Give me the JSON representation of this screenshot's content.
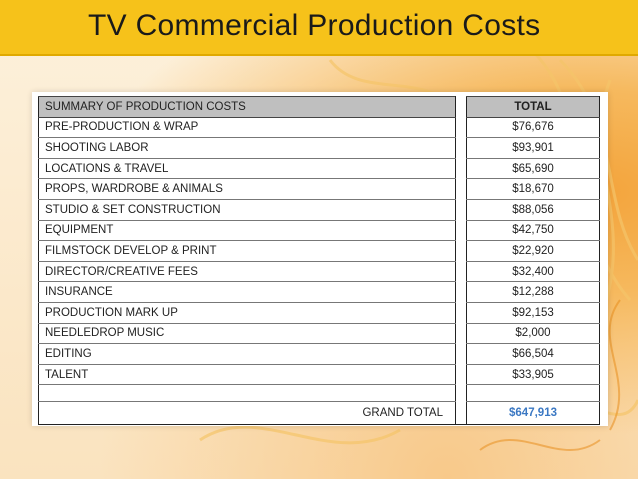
{
  "title": "TV Commercial Production Costs",
  "table": {
    "header_label": "SUMMARY OF  PRODUCTION COSTS",
    "header_total": "TOTAL",
    "rows": [
      {
        "label": "PRE-PRODUCTION & WRAP",
        "value": "$76,676"
      },
      {
        "label": "SHOOTING LABOR",
        "value": "$93,901"
      },
      {
        "label": "LOCATIONS & TRAVEL",
        "value": "$65,690"
      },
      {
        "label": "PROPS, WARDROBE & ANIMALS",
        "value": "$18,670"
      },
      {
        "label": "STUDIO & SET CONSTRUCTION",
        "value": "$88,056"
      },
      {
        "label": "EQUIPMENT",
        "value": "$42,750"
      },
      {
        "label": "FILMSTOCK DEVELOP & PRINT",
        "value": "$22,920"
      },
      {
        "label": "DIRECTOR/CREATIVE FEES",
        "value": "$32,400"
      },
      {
        "label": "INSURANCE",
        "value": "$12,288"
      },
      {
        "label": "PRODUCTION MARK UP",
        "value": "$92,153"
      },
      {
        "label": "NEEDLEDROP MUSIC",
        "value": "$2,000"
      },
      {
        "label": "EDITING",
        "value": "$66,504"
      },
      {
        "label": "TALENT",
        "value": "$33,905"
      }
    ],
    "grand_total_label": "GRAND TOTAL",
    "grand_total_value": "$647,913"
  },
  "colors": {
    "title_bar": "#f6c21a",
    "header_fill": "#bfbfbf",
    "grand_total_value": "#3b78c3"
  }
}
